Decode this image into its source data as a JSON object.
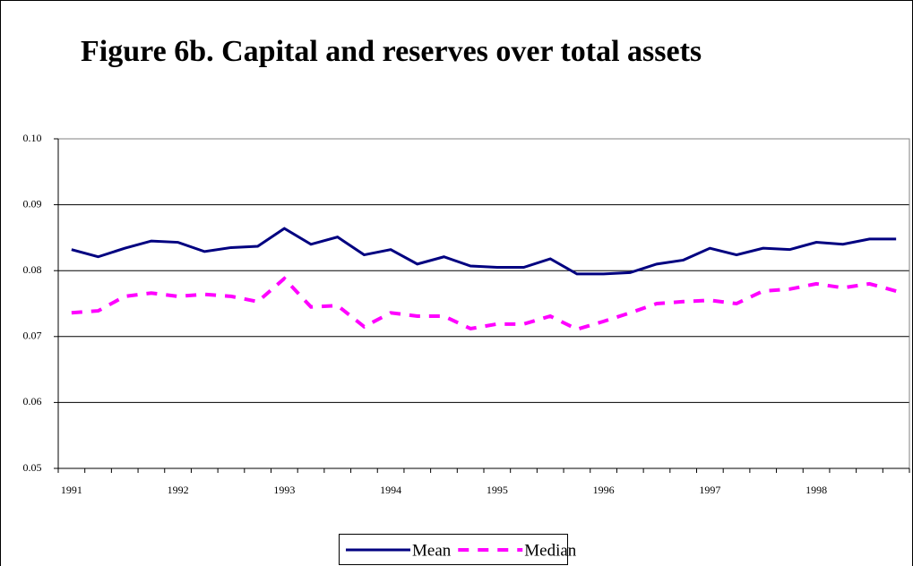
{
  "chart_data": {
    "type": "line",
    "title": "Figure 6b. Capital and reserves over total assets",
    "categories": [
      "1991",
      null,
      null,
      null,
      "1992",
      null,
      null,
      null,
      "1993",
      null,
      null,
      null,
      "1994",
      null,
      null,
      null,
      "1995",
      null,
      null,
      null,
      "1996",
      null,
      null,
      null,
      "1997",
      null,
      null,
      null,
      "1998",
      null,
      null,
      null
    ],
    "series": [
      {
        "name": "Mean",
        "color": "#000080",
        "dashed": false,
        "values": [
          0.0832,
          0.0821,
          0.0834,
          0.0845,
          0.0843,
          0.0829,
          0.0835,
          0.0837,
          0.0864,
          0.084,
          0.0851,
          0.0824,
          0.0832,
          0.081,
          0.0821,
          0.0807,
          0.0805,
          0.0805,
          0.0818,
          0.0795,
          0.0795,
          0.0797,
          0.081,
          0.0816,
          0.0834,
          0.0824,
          0.0834,
          0.0832,
          0.0843,
          0.084,
          0.0848,
          0.0848
        ]
      },
      {
        "name": "Median",
        "color": "#ff00ff",
        "dashed": true,
        "values": [
          0.0736,
          0.0739,
          0.0761,
          0.0766,
          0.0761,
          0.0764,
          0.0761,
          0.0753,
          0.0788,
          0.0745,
          0.0747,
          0.0715,
          0.0736,
          0.0731,
          0.0731,
          0.0712,
          0.0719,
          0.0719,
          0.0731,
          0.0711,
          0.0723,
          0.0736,
          0.075,
          0.0753,
          0.0755,
          0.075,
          0.0769,
          0.0772,
          0.078,
          0.0774,
          0.078,
          0.0769
        ]
      }
    ],
    "ylim": [
      0.05,
      0.1
    ],
    "yticks": [
      0.05,
      0.06,
      0.07,
      0.08,
      0.09,
      {
        "value": 0.1,
        "label": "0.10"
      }
    ],
    "grid": true,
    "legend": "bottom"
  }
}
